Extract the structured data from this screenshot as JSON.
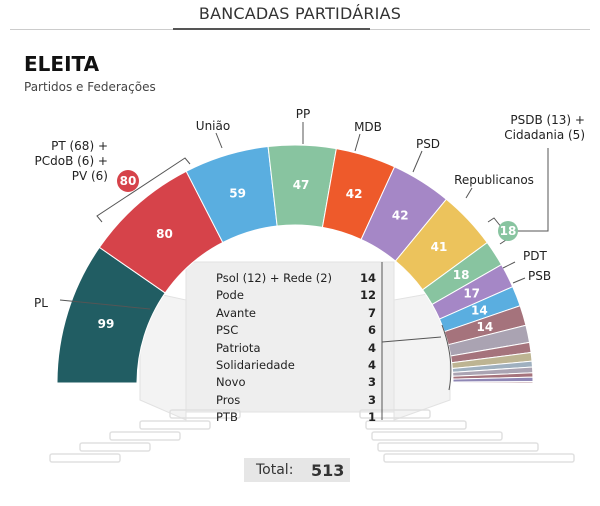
{
  "header": {
    "title": "BANCADAS PARTIDÁRIAS"
  },
  "title": "ELEITA",
  "subtitle": "Partidos e Federações",
  "labels": {
    "pl": "PL",
    "pt_line1": "PT (68) +",
    "pt_line2": "PCdoB (6) +",
    "pt_line3": "PV (6)",
    "pt_total": "80",
    "uniao": "União",
    "pp": "PP",
    "mdb": "MDB",
    "psd": "PSD",
    "republicanos": "Republicanos",
    "psdb_line1": "PSDB (13) +",
    "psdb_line2": "Cidadania (5)",
    "psdb_total": "18",
    "pdt": "PDT",
    "psb": "PSB"
  },
  "small_parties": [
    {
      "name": "Psol (12) + Rede (2)",
      "value": "14"
    },
    {
      "name": "Pode",
      "value": "12"
    },
    {
      "name": "Avante",
      "value": "7"
    },
    {
      "name": "PSC",
      "value": "6"
    },
    {
      "name": "Patriota",
      "value": "4"
    },
    {
      "name": "Solidariedade",
      "value": "4"
    },
    {
      "name": "Novo",
      "value": "3"
    },
    {
      "name": "Pros",
      "value": "3"
    },
    {
      "name": "PTB",
      "value": "1"
    }
  ],
  "total": {
    "label": "Total:",
    "value": "513"
  },
  "chart_data": {
    "type": "pie",
    "subtype": "parliament-hemicycle",
    "title": "ELEITA",
    "subtitle": "Partidos e Federações",
    "categories": [
      "PL",
      "PT+PCdoB+PV",
      "União",
      "PP",
      "MDB",
      "PSD",
      "Republicanos",
      "PSDB+Cidadania",
      "PDT",
      "PSB",
      "Psol+Rede",
      "Pode",
      "Avante",
      "PSC",
      "Patriota",
      "Solidariedade",
      "Novo",
      "Pros",
      "PTB"
    ],
    "values": [
      99,
      80,
      59,
      47,
      42,
      42,
      41,
      18,
      17,
      14,
      14,
      12,
      7,
      6,
      4,
      4,
      3,
      3,
      1
    ],
    "colors": [
      "#215d63",
      "#d6434a",
      "#5aaee0",
      "#88c4a0",
      "#ee5a2b",
      "#a587c6",
      "#ecc35c",
      "#88c4a0",
      "#a587c6",
      "#5aaee0",
      "#a5737c",
      "#aaa3b2",
      "#a5737c",
      "#bdb492",
      "#9fb0bf",
      "#aaa3b2",
      "#a5737c",
      "#8f87b5",
      "#a5737c"
    ],
    "breakdowns": {
      "PT+PCdoB+PV": {
        "PT": 68,
        "PCdoB": 6,
        "PV": 6
      },
      "PSDB+Cidadania": {
        "PSDB": 13,
        "Cidadania": 5
      },
      "Psol+Rede": {
        "Psol": 12,
        "Rede": 2
      }
    },
    "total": 513
  }
}
